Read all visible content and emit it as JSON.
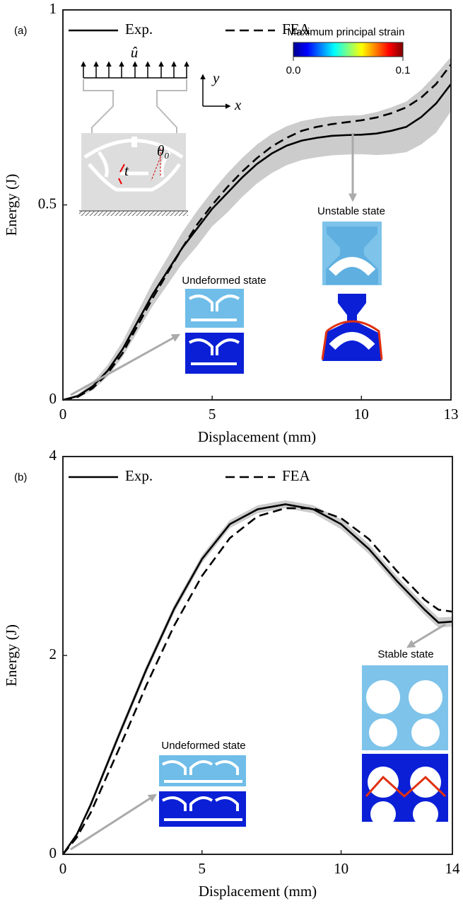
{
  "chart_data": [
    {
      "type": "line",
      "label": "(a)",
      "xlabel": "Displacement (mm)",
      "ylabel": "Energy (J)",
      "x": [
        0,
        0.5,
        1,
        1.5,
        2,
        2.5,
        3,
        3.5,
        4,
        4.5,
        5,
        5.5,
        6,
        6.5,
        7,
        7.5,
        8,
        8.5,
        9,
        9.5,
        10,
        10.5,
        11,
        11.5,
        12,
        12.5,
        13
      ],
      "series": [
        {
          "name": "Exp.",
          "color": "#000000",
          "linestyle": "solid",
          "values": [
            0,
            0.01,
            0.035,
            0.075,
            0.13,
            0.2,
            0.27,
            0.33,
            0.39,
            0.44,
            0.49,
            0.53,
            0.57,
            0.605,
            0.632,
            0.652,
            0.665,
            0.672,
            0.677,
            0.679,
            0.68,
            0.683,
            0.69,
            0.7,
            0.725,
            0.76,
            0.81
          ]
        },
        {
          "name": "FEA",
          "color": "#000000",
          "linestyle": "dashed",
          "values": [
            0,
            0.008,
            0.03,
            0.068,
            0.12,
            0.19,
            0.26,
            0.325,
            0.39,
            0.45,
            0.5,
            0.545,
            0.585,
            0.62,
            0.65,
            0.672,
            0.69,
            0.7,
            0.707,
            0.712,
            0.717,
            0.724,
            0.735,
            0.75,
            0.775,
            0.81,
            0.86
          ]
        }
      ],
      "band": {
        "color": "#cccccc",
        "upper": [
          0,
          0.015,
          0.045,
          0.09,
          0.15,
          0.225,
          0.3,
          0.365,
          0.43,
          0.485,
          0.535,
          0.58,
          0.62,
          0.655,
          0.682,
          0.702,
          0.715,
          0.722,
          0.727,
          0.729,
          0.73,
          0.738,
          0.75,
          0.765,
          0.795,
          0.835,
          0.88
        ],
        "lower": [
          0,
          0.005,
          0.025,
          0.06,
          0.11,
          0.175,
          0.24,
          0.295,
          0.35,
          0.395,
          0.445,
          0.48,
          0.52,
          0.555,
          0.582,
          0.602,
          0.615,
          0.622,
          0.627,
          0.629,
          0.63,
          0.628,
          0.63,
          0.635,
          0.655,
          0.685,
          0.74
        ]
      },
      "xlim": [
        0,
        13
      ],
      "xticks": [
        0,
        5,
        10,
        13
      ],
      "ylim": [
        0,
        1
      ],
      "yticks": [
        0,
        0.5,
        1
      ],
      "legend": "upper left",
      "colorbar": {
        "label": "Maximum principal strain",
        "lim": [
          0,
          0.1
        ],
        "ticks": [
          {
            "value": 0,
            "label": "0.0"
          },
          0.1
        ],
        "colors": [
          "#00008f",
          "#0000ff",
          "#0080ff",
          "#00ffff",
          "#80ff80",
          "#ffff00",
          "#ff8000",
          "#ff0000",
          "#800000"
        ]
      },
      "annotations": [
        "Undeformed state",
        "Unstable state",
        "û",
        "y",
        "x",
        "θ₀",
        "t"
      ]
    },
    {
      "type": "line",
      "label": "(b)",
      "xlabel": "Displacement (mm)",
      "ylabel": "Energy (J)",
      "x": [
        0,
        0.5,
        1,
        2,
        3,
        4,
        5,
        6,
        7,
        8,
        9,
        10,
        11,
        12,
        13,
        13.5,
        14
      ],
      "series": [
        {
          "name": "Exp.",
          "color": "#000000",
          "linestyle": "solid",
          "values": [
            0,
            0.2,
            0.5,
            1.19,
            1.86,
            2.47,
            2.97,
            3.32,
            3.47,
            3.52,
            3.47,
            3.32,
            3.07,
            2.75,
            2.46,
            2.33,
            2.34
          ]
        },
        {
          "name": "FEA",
          "color": "#000000",
          "linestyle": "dashed",
          "values": [
            0,
            0.17,
            0.42,
            1.05,
            1.7,
            2.3,
            2.8,
            3.18,
            3.4,
            3.48,
            3.48,
            3.38,
            3.17,
            2.85,
            2.56,
            2.46,
            2.44
          ]
        }
      ],
      "band": {
        "color": "#cccccc",
        "upper": [
          0,
          0.22,
          0.53,
          1.23,
          1.9,
          2.51,
          3.01,
          3.36,
          3.51,
          3.56,
          3.51,
          3.37,
          3.12,
          2.8,
          2.51,
          2.38,
          2.39
        ],
        "lower": [
          0,
          0.18,
          0.47,
          1.15,
          1.82,
          2.43,
          2.93,
          3.28,
          3.43,
          3.48,
          3.43,
          3.27,
          3.02,
          2.7,
          2.41,
          2.28,
          2.29
        ]
      },
      "xlim": [
        0,
        14
      ],
      "xticks": [
        0,
        5,
        10,
        14
      ],
      "ylim": [
        0,
        4
      ],
      "yticks": [
        0,
        2,
        4
      ],
      "legend": "upper left",
      "annotations": [
        "Undeformed state",
        "Stable state"
      ]
    }
  ]
}
